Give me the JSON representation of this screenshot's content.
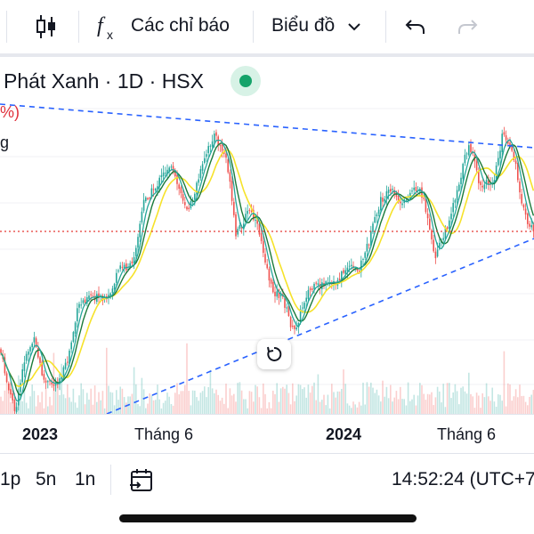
{
  "toolbar": {
    "indicators_label": "Các chỉ báo",
    "chart_type_label": "Biểu đồ",
    "icons": [
      "indicator-fx-icon",
      "candle-icon",
      "undo-icon",
      "redo-icon",
      "chevron-down-icon"
    ]
  },
  "symbol": {
    "title": "Phát Xanh · 1D · HSX",
    "status": "market-open",
    "status_color": "#15a36a"
  },
  "legend": {
    "change_fragment": "%)",
    "label_fragment": "g"
  },
  "x_axis": {
    "labels": [
      "2023",
      "Tháng 6",
      "2024",
      "Tháng 6"
    ],
    "bold": [
      true,
      false,
      true,
      false
    ]
  },
  "bottom_bar": {
    "ranges": [
      "1p",
      "5n",
      "1n"
    ],
    "time": "14:52:24 (UTC+7"
  },
  "colors": {
    "up": "#26a69a",
    "down": "#ef5350",
    "trendline": "#2962ff",
    "price_line": "#e53935",
    "ma_fast": "#f6e22a",
    "ma_mid": "#1b7a3a",
    "ma_slow": "#26a69a"
  }
}
